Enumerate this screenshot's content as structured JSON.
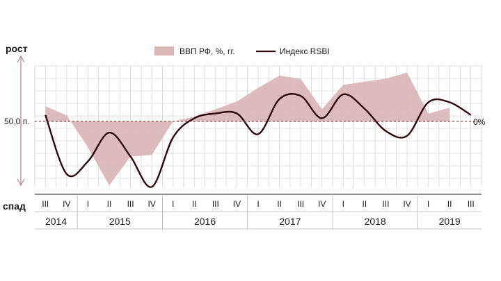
{
  "chart_data": {
    "type": "area",
    "title": "",
    "top_label": "рост",
    "bottom_label": "спад",
    "left_ref_label": "50,0 п.",
    "right_ref_label": "0%",
    "legend_position": "top",
    "quarter_labels": [
      "III",
      "IV",
      "I",
      "II",
      "III",
      "IV",
      "I",
      "II",
      "III",
      "IV",
      "I",
      "II",
      "III",
      "IV",
      "I",
      "II",
      "III",
      "IV",
      "I",
      "II",
      "III"
    ],
    "years": [
      {
        "label": "2014",
        "span": 2
      },
      {
        "label": "2015",
        "span": 4
      },
      {
        "label": "2016",
        "span": 4
      },
      {
        "label": "2017",
        "span": 4
      },
      {
        "label": "2018",
        "span": 4
      },
      {
        "label": "2019",
        "span": 3
      }
    ],
    "series": [
      {
        "name": "ВВП РФ, %, гг.",
        "kind": "area",
        "color": "#d9b7b9",
        "values": [
          1.0,
          0.4,
          -1.7,
          -4.2,
          -2.3,
          -2.2,
          0.0,
          0.3,
          0.8,
          1.3,
          2.2,
          3.0,
          2.8,
          0.8,
          2.4,
          2.6,
          2.8,
          3.2,
          0.5,
          0.9,
          null
        ]
      },
      {
        "name": "Индекс RSBI",
        "kind": "line",
        "color": "#2a0a0c",
        "values": [
          50.4,
          46.7,
          47.5,
          49.3,
          47.8,
          45.9,
          49.0,
          50.2,
          50.5,
          50.5,
          49.2,
          51.4,
          51.6,
          50.2,
          51.7,
          50.8,
          49.4,
          49.1,
          51.2,
          51.2,
          50.4
        ]
      }
    ],
    "reference_line": {
      "left_value": 50.0,
      "right_value": 0
    }
  }
}
